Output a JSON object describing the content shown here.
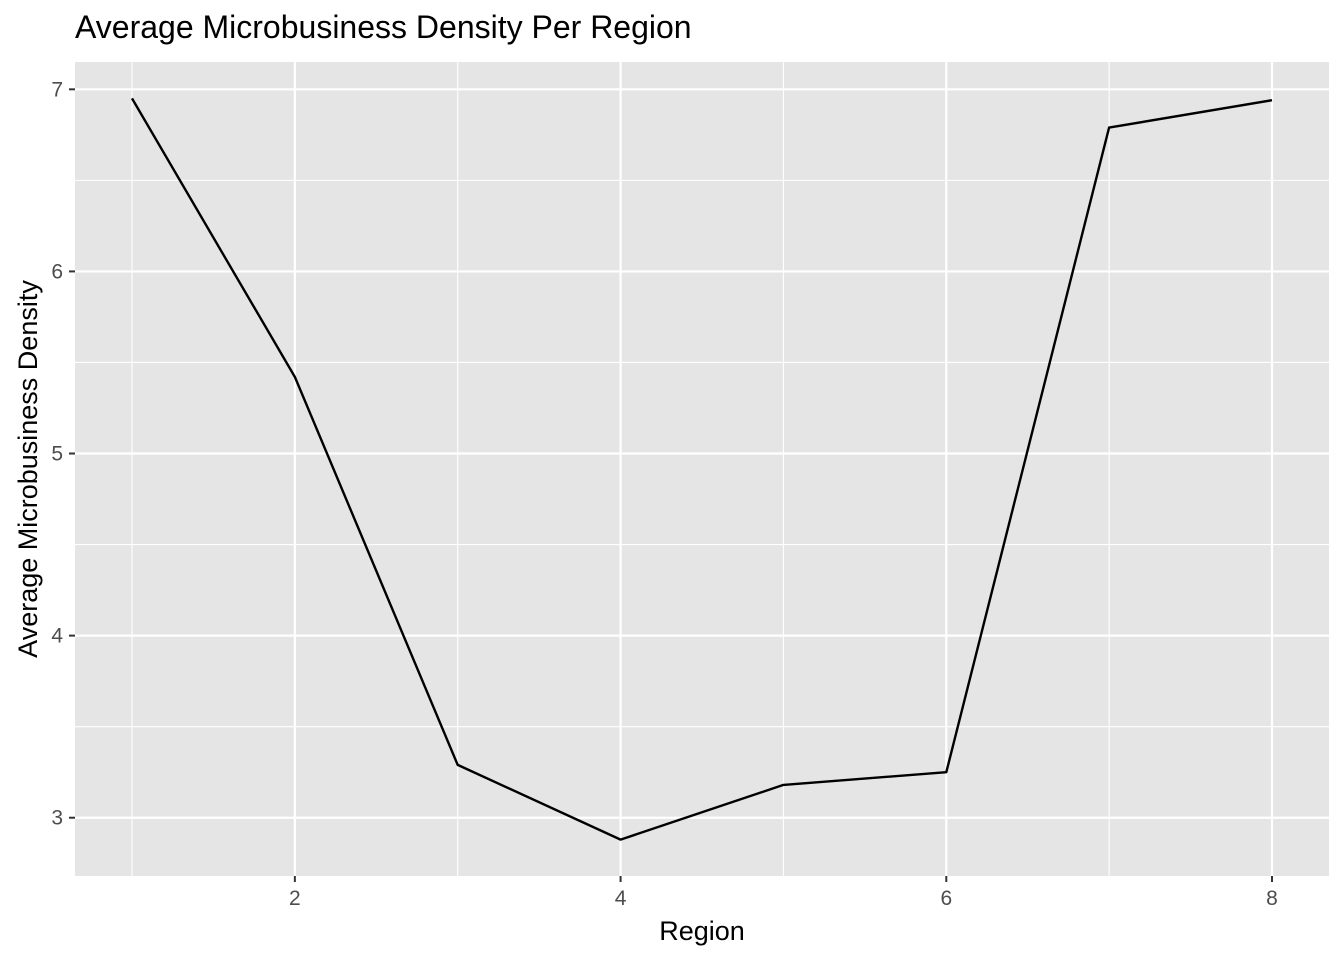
{
  "chart_data": {
    "type": "line",
    "title": "Average Microbusiness Density Per Region",
    "xlabel": "Region",
    "ylabel": "Average Microbusiness Density",
    "x": [
      1,
      2,
      3,
      4,
      5,
      6,
      7,
      8
    ],
    "series": [
      {
        "values": [
          6.95,
          5.42,
          3.29,
          2.88,
          3.18,
          3.25,
          6.79,
          6.94
        ]
      }
    ],
    "xlim": [
      0.65,
      8.35
    ],
    "ylim": [
      2.68,
      7.15
    ],
    "x_major_ticks": [
      2,
      4,
      6,
      8
    ],
    "x_minor_ticks": [
      1,
      3,
      5,
      7
    ],
    "y_major_ticks": [
      3,
      4,
      5,
      6,
      7
    ],
    "y_minor_ticks": [
      3.5,
      4.5,
      5.5,
      6.5
    ],
    "x_tick_labels": [
      "2",
      "4",
      "6",
      "8"
    ],
    "y_tick_labels": [
      "3",
      "4",
      "5",
      "6",
      "7"
    ],
    "grid": true,
    "legend": "none",
    "colors": {
      "panel_background": "#e5e5e5",
      "grid": "#ffffff",
      "line": "#000000",
      "tick_text": "#4d4d4d",
      "tick_mark": "#333333"
    }
  }
}
